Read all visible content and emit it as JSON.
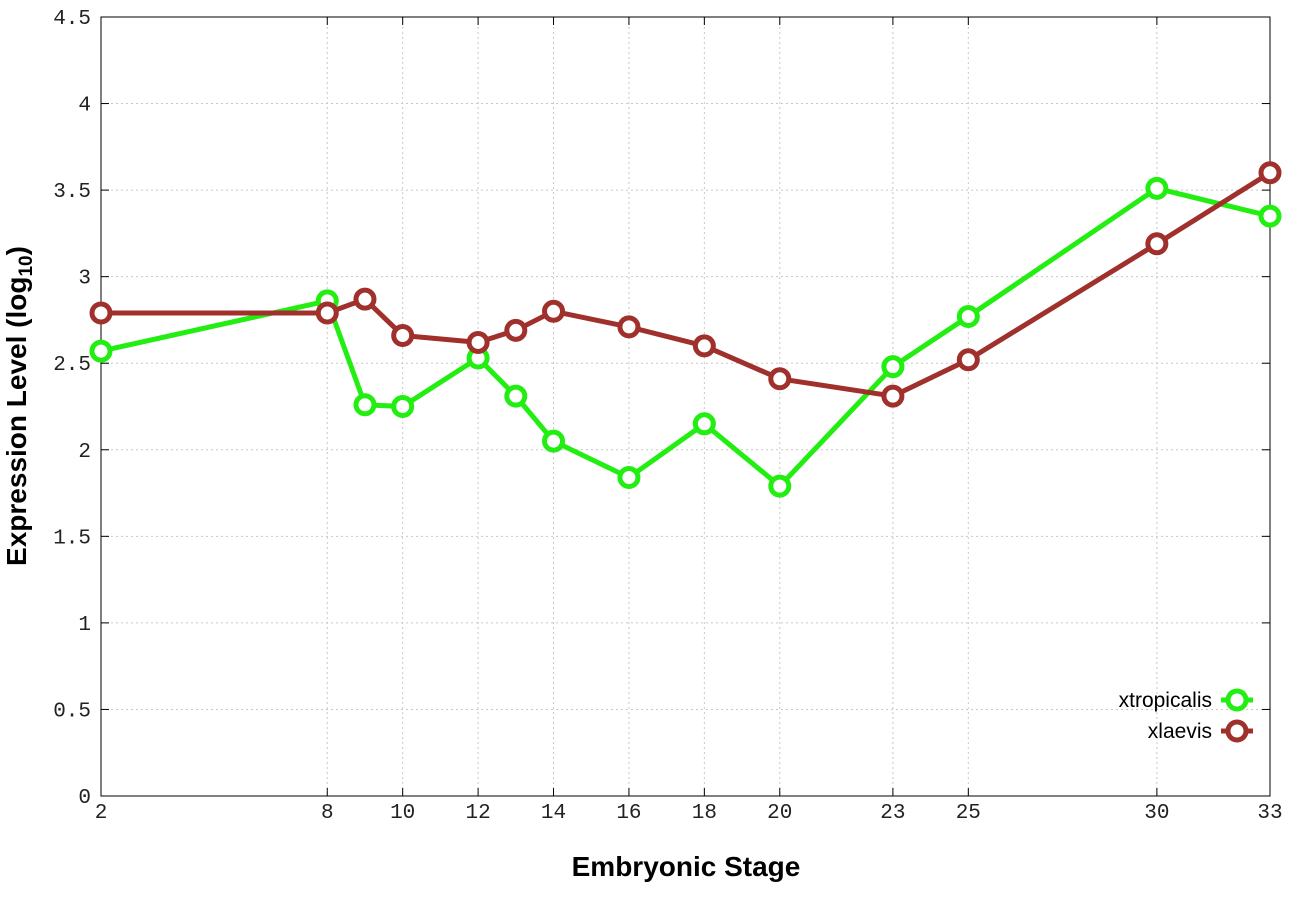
{
  "chart_data": {
    "type": "line",
    "title": "",
    "xlabel": "Embryonic Stage",
    "ylabel": {
      "main": "Expression Level (log",
      "subscript": "10",
      "close": ")"
    },
    "x": [
      2,
      8,
      9,
      10,
      12,
      13,
      14,
      16,
      18,
      20,
      23,
      25,
      30,
      33
    ],
    "x_ticks": [
      2,
      8,
      10,
      12,
      14,
      16,
      18,
      20,
      23,
      25,
      30,
      33
    ],
    "xlim": [
      2,
      33
    ],
    "y_ticks": [
      "0",
      "0.5",
      "1",
      "1.5",
      "2",
      "2.5",
      "3",
      "3.5",
      "4",
      "4.5"
    ],
    "ylim": [
      0,
      4.5
    ],
    "grid": true,
    "legend_position": "bottom-right",
    "series": [
      {
        "name": "xtropicalis",
        "color": "#22ee11",
        "values": [
          2.57,
          2.86,
          2.26,
          2.25,
          2.53,
          2.31,
          2.05,
          1.84,
          2.15,
          1.79,
          2.48,
          2.77,
          3.51,
          3.35
        ]
      },
      {
        "name": "xlaevis",
        "color": "#a0302c",
        "values": [
          2.79,
          2.79,
          2.87,
          2.66,
          2.62,
          2.69,
          2.8,
          2.71,
          2.6,
          2.41,
          2.31,
          2.52,
          3.19,
          3.6
        ]
      }
    ]
  }
}
